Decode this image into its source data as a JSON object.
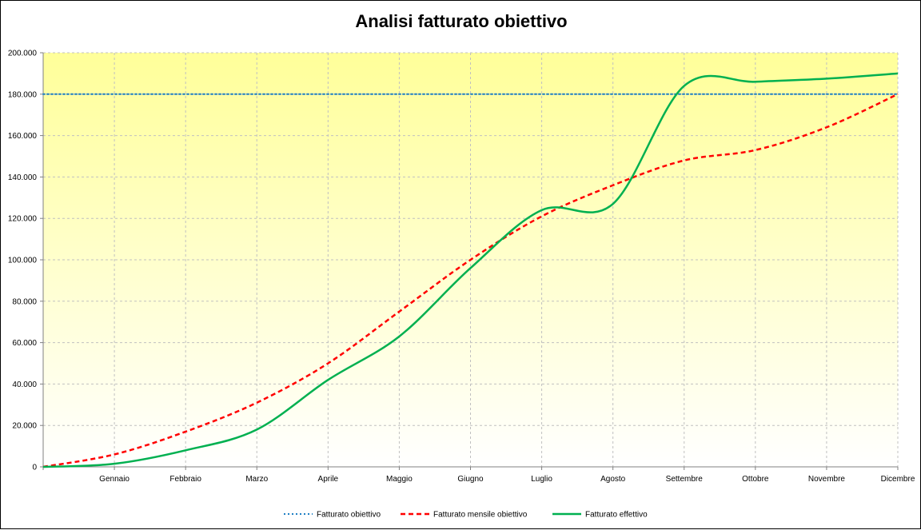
{
  "chart_data": {
    "type": "line",
    "title": "Analisi fatturato obiettivo",
    "xlabel": "",
    "ylabel": "",
    "categories": [
      "",
      "Gennaio",
      "Febbraio",
      "Marzo",
      "Aprile",
      "Maggio",
      "Giugno",
      "Luglio",
      "Agosto",
      "Settembre",
      "Ottobre",
      "Novembre",
      "Dicembre"
    ],
    "yticks": [
      "0",
      "20.000",
      "40.000",
      "60.000",
      "80.000",
      "100.000",
      "120.000",
      "140.000",
      "160.000",
      "180.000",
      "200.000"
    ],
    "ylim": [
      0,
      200000
    ],
    "grid": true,
    "legend_position": "bottom",
    "series": [
      {
        "name": "Fatturato obiettivo",
        "style": "dotted",
        "color": "#1f7fc4",
        "values": [
          180000,
          180000,
          180000,
          180000,
          180000,
          180000,
          180000,
          180000,
          180000,
          180000,
          180000,
          180000,
          180000
        ]
      },
      {
        "name": "Fatturato mensile obiettivo",
        "style": "dashed",
        "color": "#ff0000",
        "values": [
          0,
          6000,
          17000,
          31000,
          50000,
          75000,
          100000,
          121000,
          136000,
          148000,
          153000,
          164000,
          180000
        ]
      },
      {
        "name": "Fatturato effettivo",
        "style": "solid",
        "color": "#00b050",
        "values": [
          0,
          1500,
          8000,
          18000,
          42000,
          63000,
          96000,
          124000,
          127000,
          184000,
          186000,
          187500,
          190000
        ]
      }
    ]
  },
  "colors": {
    "plot_top": "#ffff99",
    "plot_bottom": "#ffffff",
    "grid": "#c0c0c0",
    "axis": "#808080"
  }
}
